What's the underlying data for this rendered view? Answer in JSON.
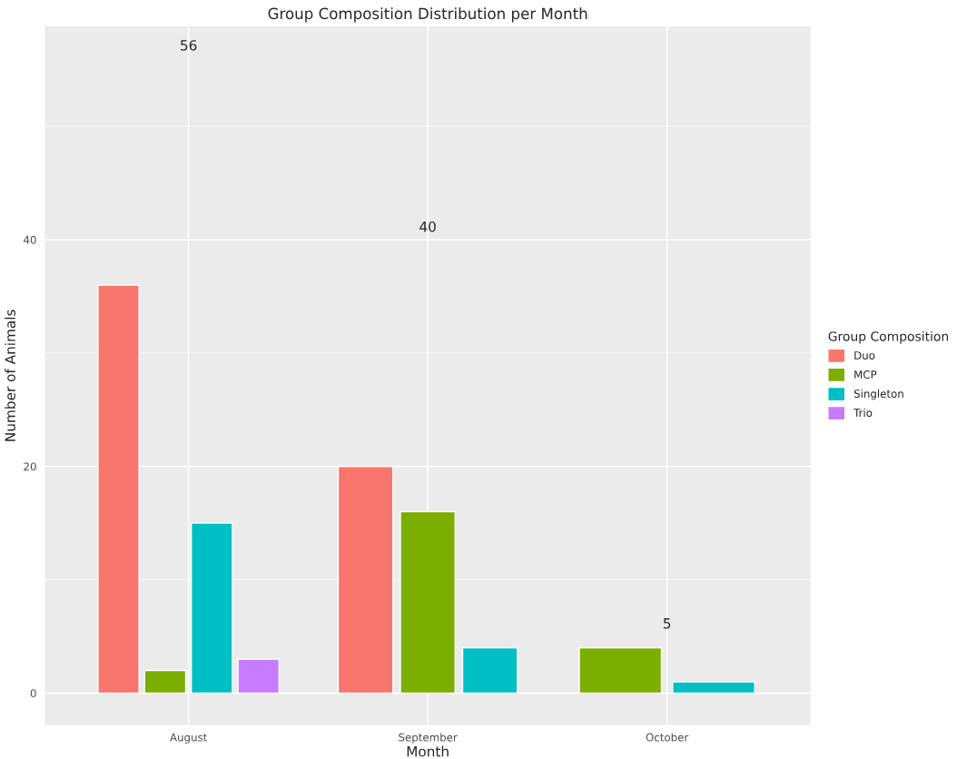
{
  "chart_data": {
    "type": "bar",
    "title": "Group Composition Distribution per Month",
    "xlabel": "Month",
    "ylabel": "Number of Animals",
    "legend_title": "Group Composition",
    "categories": [
      "August",
      "September",
      "October"
    ],
    "series": [
      {
        "name": "Duo",
        "color": "#f8766d",
        "values": [
          36,
          20,
          null
        ]
      },
      {
        "name": "MCP",
        "color": "#7cae00",
        "values": [
          2,
          16,
          4
        ]
      },
      {
        "name": "Singleton",
        "color": "#00bfc4",
        "values": [
          15,
          4,
          1
        ]
      },
      {
        "name": "Trio",
        "color": "#c77cff",
        "values": [
          3,
          null,
          null
        ]
      }
    ],
    "annotations": [
      "56",
      "40",
      "5"
    ],
    "ylim": [
      -2.8,
      58.8
    ],
    "yticks": [
      0,
      20,
      40
    ],
    "grid": true,
    "legend": "right"
  }
}
